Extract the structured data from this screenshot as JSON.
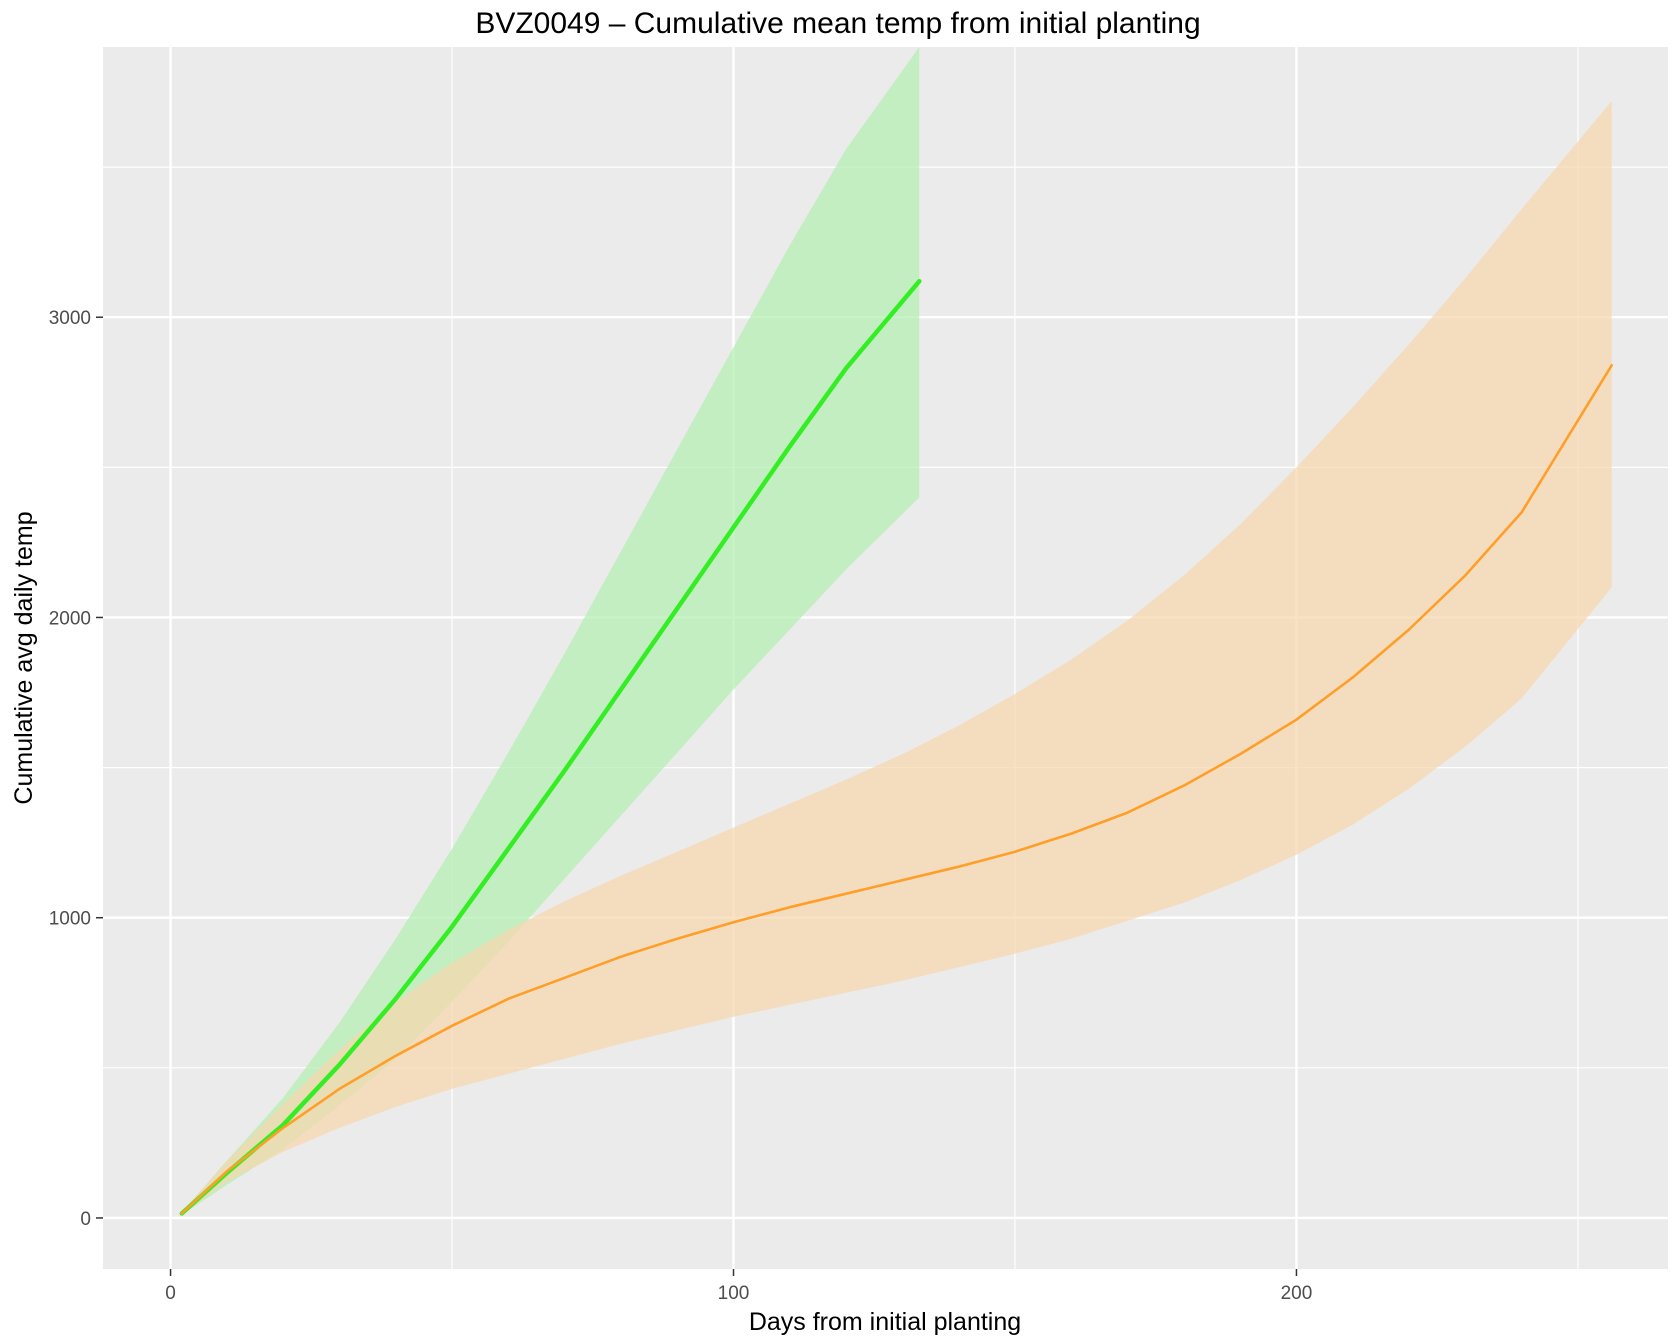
{
  "chart_data": {
    "type": "line",
    "title": "BVZ0049 – Cumulative mean temp from initial planting",
    "xlabel": "Days from initial planting",
    "ylabel": "Cumulative avg daily temp",
    "xlim": [
      -12,
      266
    ],
    "ylim": [
      -170,
      3900
    ],
    "x_ticks": [
      0,
      100,
      200
    ],
    "x_tick_labels": [
      "0",
      "100",
      "200"
    ],
    "x_minor_ticks": [
      50,
      150,
      250
    ],
    "y_ticks": [
      0,
      1000,
      2000,
      3000
    ],
    "y_tick_labels": [
      "0",
      "1000",
      "2000",
      "3000"
    ],
    "y_minor_ticks": [
      500,
      1500,
      2500,
      3500
    ],
    "grid": true,
    "legend": "none",
    "colors": {
      "panel_background": "#ebebeb",
      "grid_line": "#ffffff",
      "green_line": "#33ee22",
      "green_band": "#b2efb0",
      "orange_line": "#ff9f2a",
      "orange_band": "#f6d7ad"
    },
    "series": [
      {
        "color": "green",
        "x": [
          2,
          10,
          20,
          30,
          40,
          50,
          60,
          70,
          80,
          90,
          100,
          110,
          120,
          133
        ],
        "y": [
          15,
          150,
          310,
          510,
          730,
          970,
          1230,
          1490,
          1760,
          2030,
          2300,
          2570,
          2830,
          3120
        ],
        "ymin": [
          10,
          110,
          230,
          375,
          530,
          720,
          920,
          1130,
          1340,
          1550,
          1760,
          1960,
          2160,
          2400
        ],
        "ymax": [
          20,
          190,
          400,
          650,
          930,
          1230,
          1550,
          1880,
          2220,
          2560,
          2900,
          3240,
          3560,
          3900
        ]
      },
      {
        "color": "orange",
        "x": [
          2,
          10,
          20,
          30,
          40,
          50,
          60,
          70,
          80,
          90,
          100,
          110,
          120,
          130,
          140,
          150,
          160,
          170,
          180,
          190,
          200,
          210,
          220,
          230,
          240,
          256
        ],
        "y": [
          15,
          155,
          300,
          430,
          540,
          640,
          730,
          800,
          870,
          930,
          985,
          1035,
          1080,
          1125,
          1170,
          1220,
          1280,
          1350,
          1440,
          1545,
          1660,
          1800,
          1960,
          2140,
          2350,
          2840
        ],
        "ymin": [
          10,
          120,
          220,
          300,
          370,
          430,
          480,
          530,
          580,
          625,
          670,
          710,
          750,
          790,
          835,
          880,
          930,
          990,
          1050,
          1125,
          1210,
          1310,
          1430,
          1570,
          1730,
          2100
        ],
        "ymax": [
          20,
          190,
          380,
          560,
          720,
          850,
          960,
          1055,
          1140,
          1220,
          1300,
          1380,
          1460,
          1545,
          1640,
          1745,
          1860,
          1990,
          2140,
          2310,
          2500,
          2700,
          2910,
          3130,
          3360,
          3720
        ]
      }
    ]
  }
}
